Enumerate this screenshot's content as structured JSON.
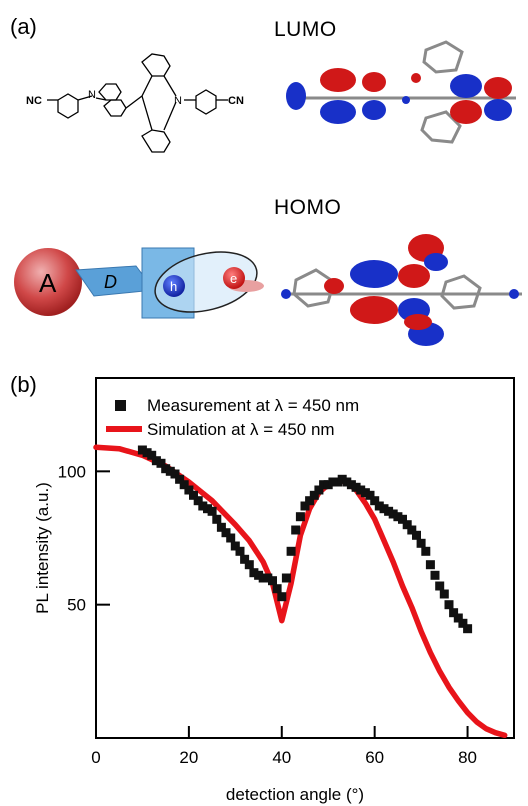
{
  "panel_a": {
    "label": "(a)",
    "lumo_title": "LUMO",
    "homo_title": "HOMO",
    "molecule": {
      "left_group": "NC",
      "right_group": "CN",
      "atom_left": "N",
      "atom_right": "N"
    },
    "schematic": {
      "acceptor": "A",
      "donor": "D",
      "hole": "h",
      "electron": "e"
    },
    "colors": {
      "positive_lobe": "#d01818",
      "negative_lobe": "#1830c8",
      "carbon": "#8a8a8a",
      "acceptor_ball": "#d04848",
      "donor_plate": "#5aa0d8"
    }
  },
  "panel_b": {
    "label": "(b)"
  },
  "chart_data": {
    "type": "scatter",
    "title": "",
    "xlabel": "detection angle (°)",
    "ylabel": "PL intensity (a.u.)",
    "xlim": [
      0,
      90
    ],
    "ylim": [
      0,
      135
    ],
    "xticks": [
      0,
      20,
      40,
      60,
      80
    ],
    "yticks": [
      50,
      100
    ],
    "grid": false,
    "legend_position": "top-left",
    "series": [
      {
        "name": "Measurement at λ = 450 nm",
        "style": "square-markers",
        "color": "#111111",
        "x": [
          10,
          11,
          12,
          13,
          14,
          15,
          16,
          17,
          18,
          19,
          20,
          21,
          22,
          23,
          24,
          25,
          26,
          27,
          28,
          29,
          30,
          31,
          32,
          33,
          34,
          35,
          36,
          37,
          38,
          39,
          40,
          41,
          42,
          43,
          44,
          45,
          46,
          47,
          48,
          49,
          50,
          51,
          52,
          53,
          54,
          55,
          56,
          57,
          58,
          59,
          60,
          61,
          62,
          63,
          64,
          65,
          66,
          67,
          68,
          69,
          70,
          71,
          72,
          73,
          74,
          75,
          76,
          77,
          78,
          79,
          80
        ],
        "y": [
          108,
          107,
          106,
          104,
          103,
          101,
          100,
          99,
          97,
          95,
          93,
          91,
          89,
          87,
          86,
          85,
          82,
          79,
          77,
          75,
          72,
          70,
          67,
          65,
          62,
          61,
          60,
          60,
          59,
          56,
          53,
          60,
          70,
          78,
          83,
          87,
          89,
          91,
          93,
          95,
          95,
          96,
          96,
          97,
          96,
          95,
          94,
          93,
          92,
          91,
          89,
          87,
          86,
          85,
          84,
          83,
          82,
          80,
          78,
          76,
          73,
          70,
          65,
          61,
          57,
          54,
          50,
          47,
          45,
          43,
          41
        ]
      },
      {
        "name": "Simulation at λ = 450 nm",
        "style": "line",
        "color": "#e8141a",
        "x": [
          0,
          5,
          10,
          15,
          20,
          25,
          30,
          33,
          36,
          38,
          40,
          42,
          44,
          46,
          48,
          50,
          52,
          54,
          56,
          58,
          60,
          62,
          64,
          66,
          68,
          70,
          72,
          74,
          76,
          78,
          80,
          82,
          84,
          86,
          88
        ],
        "y": [
          109,
          108.5,
          106,
          102,
          96,
          89,
          80,
          74,
          66,
          58,
          44,
          58,
          76,
          86,
          92,
          95,
          96.5,
          96,
          93,
          88,
          82,
          74,
          66,
          57,
          49,
          40,
          32,
          25,
          19,
          14,
          9.5,
          6,
          3.5,
          2,
          1
        ]
      }
    ]
  }
}
